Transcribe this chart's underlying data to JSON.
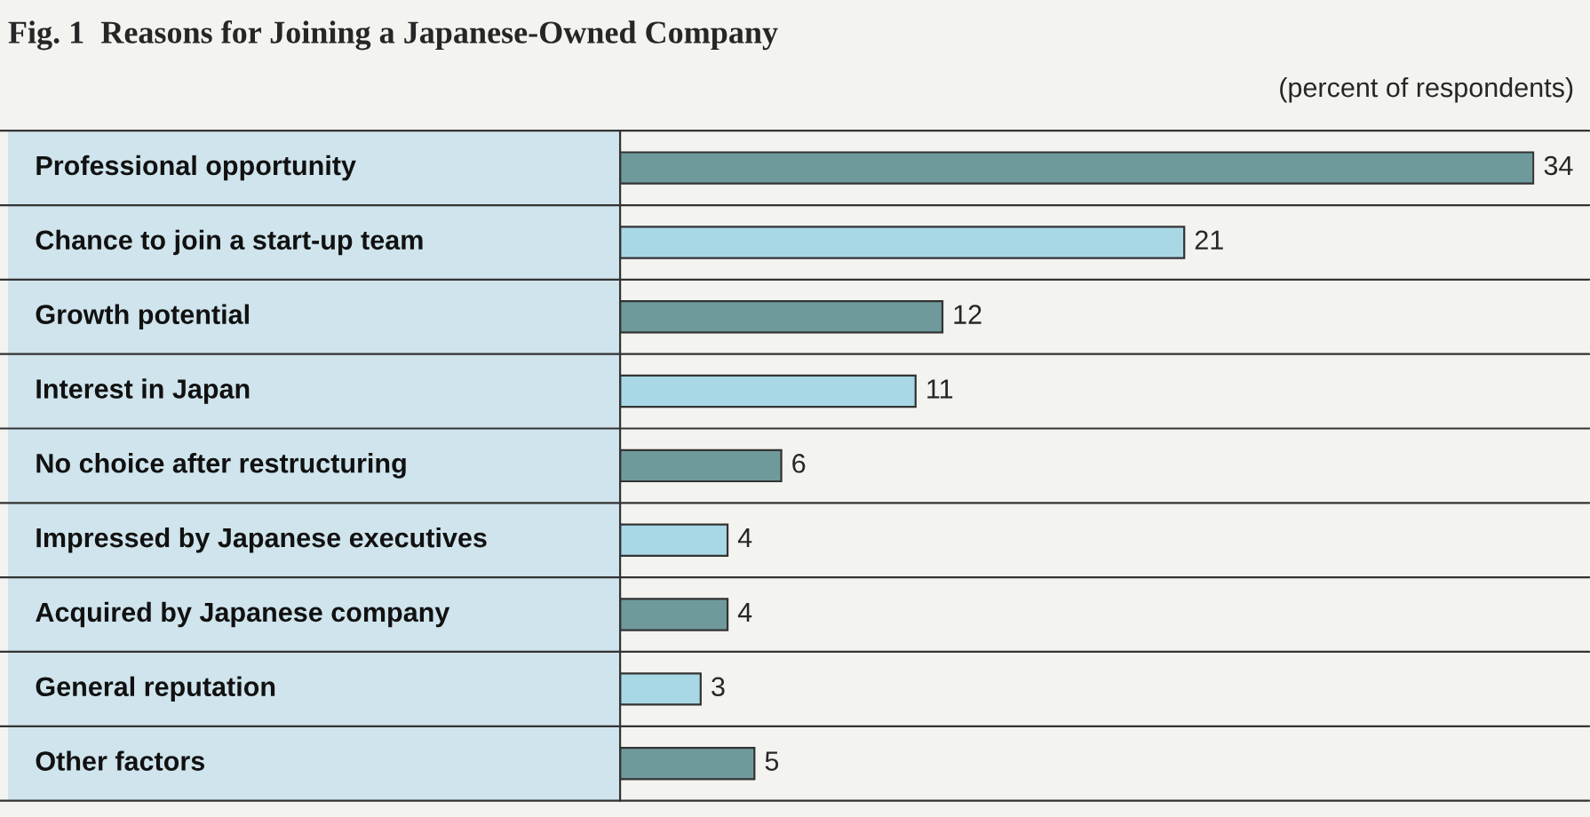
{
  "chart_data": {
    "type": "bar",
    "orientation": "horizontal",
    "title": "Fig. 1  Reasons for Joining a Japanese-Owned Company",
    "categories": [
      "Professional opportunity",
      "Chance to join a start-up team",
      "Growth potential",
      "Interest in Japan",
      "No choice after restructuring",
      "Impressed by Japanese executives",
      "Acquired by Japanese company",
      "General reputation",
      "Other factors"
    ],
    "values": [
      34,
      21,
      12,
      11,
      6,
      4,
      4,
      3,
      5
    ],
    "colors": [
      "#6f9a9c",
      "#a8d8e6",
      "#6f9a9c",
      "#a8d8e6",
      "#6f9a9c",
      "#a8d8e6",
      "#6f9a9c",
      "#a8d8e6",
      "#6f9a9c"
    ],
    "data_labels": true,
    "grid": false,
    "legend": false,
    "annotations": [
      "(percent of respondents)"
    ]
  }
}
